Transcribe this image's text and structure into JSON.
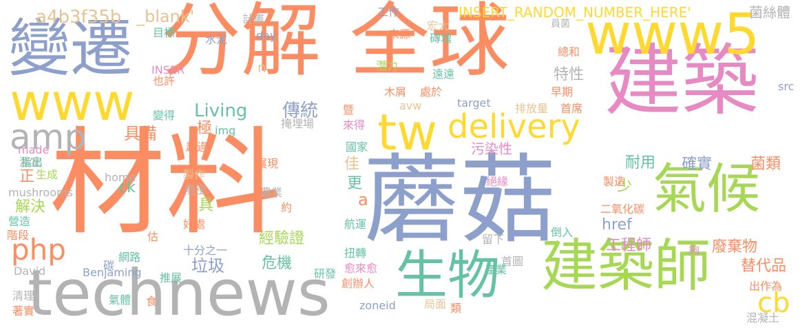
{
  "colors": {
    "orange": "#fc8d62",
    "blue": "#8da0cb",
    "pink": "#e78ac3",
    "green": "#a6d854",
    "yellow": "#ffd92f",
    "tan": "#e5c494",
    "gray": "#b3b3b3",
    "teal": "#66c2a5"
  },
  "words": [
    {
      "text": "材料",
      "color": "orange"
    },
    {
      "text": "蘑菇",
      "color": "blue"
    },
    {
      "text": "分解",
      "color": "orange"
    },
    {
      "text": "全球",
      "color": "orange"
    },
    {
      "text": "建築",
      "color": "pink"
    },
    {
      "text": "technews",
      "color": "gray"
    },
    {
      "text": "www",
      "color": "yellow"
    },
    {
      "text": "變遷",
      "color": "blue"
    },
    {
      "text": "www5",
      "color": "yellow"
    },
    {
      "text": "建築師",
      "color": "green"
    },
    {
      "text": "生物",
      "color": "teal"
    },
    {
      "text": "氣候",
      "color": "green"
    },
    {
      "text": "tw",
      "color": "yellow"
    },
    {
      "text": "delivery",
      "color": "yellow"
    },
    {
      "text": "amp",
      "color": "gray"
    },
    {
      "text": "php",
      "color": "orange"
    },
    {
      "text": "cb",
      "color": "yellow"
    },
    {
      "text": "a4b3f35b",
      "color": "tan"
    },
    {
      "text": "_blank'",
      "color": "tan"
    },
    {
      "text": "INSERT_RANDOM_NUMBER_HERE'",
      "color": "yellow"
    },
    {
      "text": "菌絲體",
      "color": "gray"
    },
    {
      "text": "工作",
      "color": "blue"
    },
    {
      "text": "計畫",
      "color": "gray"
    },
    {
      "text": "來源",
      "color": "orange"
    },
    {
      "text": "宏大",
      "color": "tan"
    },
    {
      "text": "員菌",
      "color": "gray"
    },
    {
      "text": "目標",
      "color": "teal"
    },
    {
      "text": "水泥",
      "color": "blue"
    },
    {
      "text": "day",
      "color": "blue"
    },
    {
      "text": "磚塊",
      "color": "teal"
    },
    {
      "text": "總和",
      "color": "orange"
    },
    {
      "text": "INSER",
      "color": "pink"
    },
    {
      "text": "也許",
      "color": "orange"
    },
    {
      "text": "n",
      "color": "tan"
    },
    {
      "text": "潛力",
      "color": "green"
    },
    {
      "text": "遠遠",
      "color": "teal"
    },
    {
      "text": "特性",
      "color": "gray"
    },
    {
      "text": "src",
      "color": "blue"
    },
    {
      "text": "Living",
      "color": "teal"
    },
    {
      "text": "傳統",
      "color": "blue"
    },
    {
      "text": "木屑",
      "color": "orange"
    },
    {
      "text": "avw",
      "color": "tan"
    },
    {
      "text": "處於",
      "color": "orange"
    },
    {
      "text": "早期",
      "color": "orange"
    },
    {
      "text": "變得",
      "color": "teal"
    },
    {
      "text": "target",
      "color": "blue"
    },
    {
      "text": "排放量",
      "color": "tan"
    },
    {
      "text": "首席",
      "color": "orange"
    },
    {
      "text": "具備",
      "color": "orange"
    },
    {
      "text": "極",
      "color": "orange"
    },
    {
      "text": "img",
      "color": "teal"
    },
    {
      "text": "暨",
      "color": "orange"
    },
    {
      "text": "掩埋場",
      "color": "gray"
    },
    {
      "text": "來得",
      "color": "pink"
    },
    {
      "text": "made",
      "color": "pink"
    },
    {
      "text": "溫室",
      "color": "gray"
    },
    {
      "text": "超過",
      "color": "orange"
    },
    {
      "text": "國家",
      "color": "teal"
    },
    {
      "text": "污染性",
      "color": "pink"
    },
    {
      "text": "正",
      "color": "orange"
    },
    {
      "text": "生成",
      "color": "green"
    },
    {
      "text": "佳",
      "color": "tan"
    },
    {
      "text": "耐用",
      "color": "teal"
    },
    {
      "text": "確實",
      "color": "blue"
    },
    {
      "text": "菌類",
      "color": "orange"
    },
    {
      "text": "指出",
      "color": "teal"
    },
    {
      "text": "製作",
      "color": "tan"
    },
    {
      "text": "展現",
      "color": "orange"
    },
    {
      "text": "home",
      "color": "gray"
    },
    {
      "text": "更",
      "color": "teal"
    },
    {
      "text": "ck",
      "color": "teal"
    },
    {
      "text": "航空",
      "color": "gray"
    },
    {
      "text": "農業",
      "color": "gray"
    },
    {
      "text": "少",
      "color": "green"
    },
    {
      "text": "絕緣",
      "color": "pink"
    },
    {
      "text": "製造",
      "color": "orange"
    },
    {
      "text": "mushrooms",
      "color": "gray"
    },
    {
      "text": "a",
      "color": "orange"
    },
    {
      "text": "解決",
      "color": "green"
    },
    {
      "text": "具",
      "color": "green"
    },
    {
      "text": "約",
      "color": "orange"
    },
    {
      "text": "二氧化碳",
      "color": "orange"
    },
    {
      "text": "href",
      "color": "blue"
    },
    {
      "text": "營造",
      "color": "teal"
    },
    {
      "text": "階段",
      "color": "orange"
    },
    {
      "text": "好處",
      "color": "orange"
    },
    {
      "text": "經驗證",
      "color": "green"
    },
    {
      "text": "航運",
      "color": "teal"
    },
    {
      "text": "倒入",
      "color": "teal"
    },
    {
      "text": "工程師",
      "color": "pink"
    },
    {
      "text": "估",
      "color": "orange"
    },
    {
      "text": "十分之一",
      "color": "blue"
    },
    {
      "text": "留下",
      "color": "gray"
    },
    {
      "text": "夠",
      "color": "pink"
    },
    {
      "text": "網路",
      "color": "teal"
    },
    {
      "text": "垃圾",
      "color": "blue"
    },
    {
      "text": "廢棄物",
      "color": "orange"
    },
    {
      "text": "碳",
      "color": "blue"
    },
    {
      "text": "扭轉",
      "color": "teal"
    },
    {
      "text": "首圖",
      "color": "gray"
    },
    {
      "text": "危機",
      "color": "teal"
    },
    {
      "text": "產業",
      "color": "teal"
    },
    {
      "text": "替代品",
      "color": "orange"
    },
    {
      "text": "David",
      "color": "gray"
    },
    {
      "text": "Benjaming",
      "color": "blue"
    },
    {
      "text": "推展",
      "color": "teal"
    },
    {
      "text": "研發",
      "color": "teal"
    },
    {
      "text": "愈來愈",
      "color": "pink"
    },
    {
      "text": "創辦人",
      "color": "orange"
    },
    {
      "text": "出作為",
      "color": "orange"
    },
    {
      "text": "清理",
      "color": "gray"
    },
    {
      "text": "氣體",
      "color": "teal"
    },
    {
      "text": "食",
      "color": "orange"
    },
    {
      "text": "zoneid",
      "color": "blue"
    },
    {
      "text": "局面",
      "color": "tan"
    },
    {
      "text": "類",
      "color": "orange"
    },
    {
      "text": "著實",
      "color": "orange"
    },
    {
      "text": "混凝土",
      "color": "gray"
    }
  ]
}
